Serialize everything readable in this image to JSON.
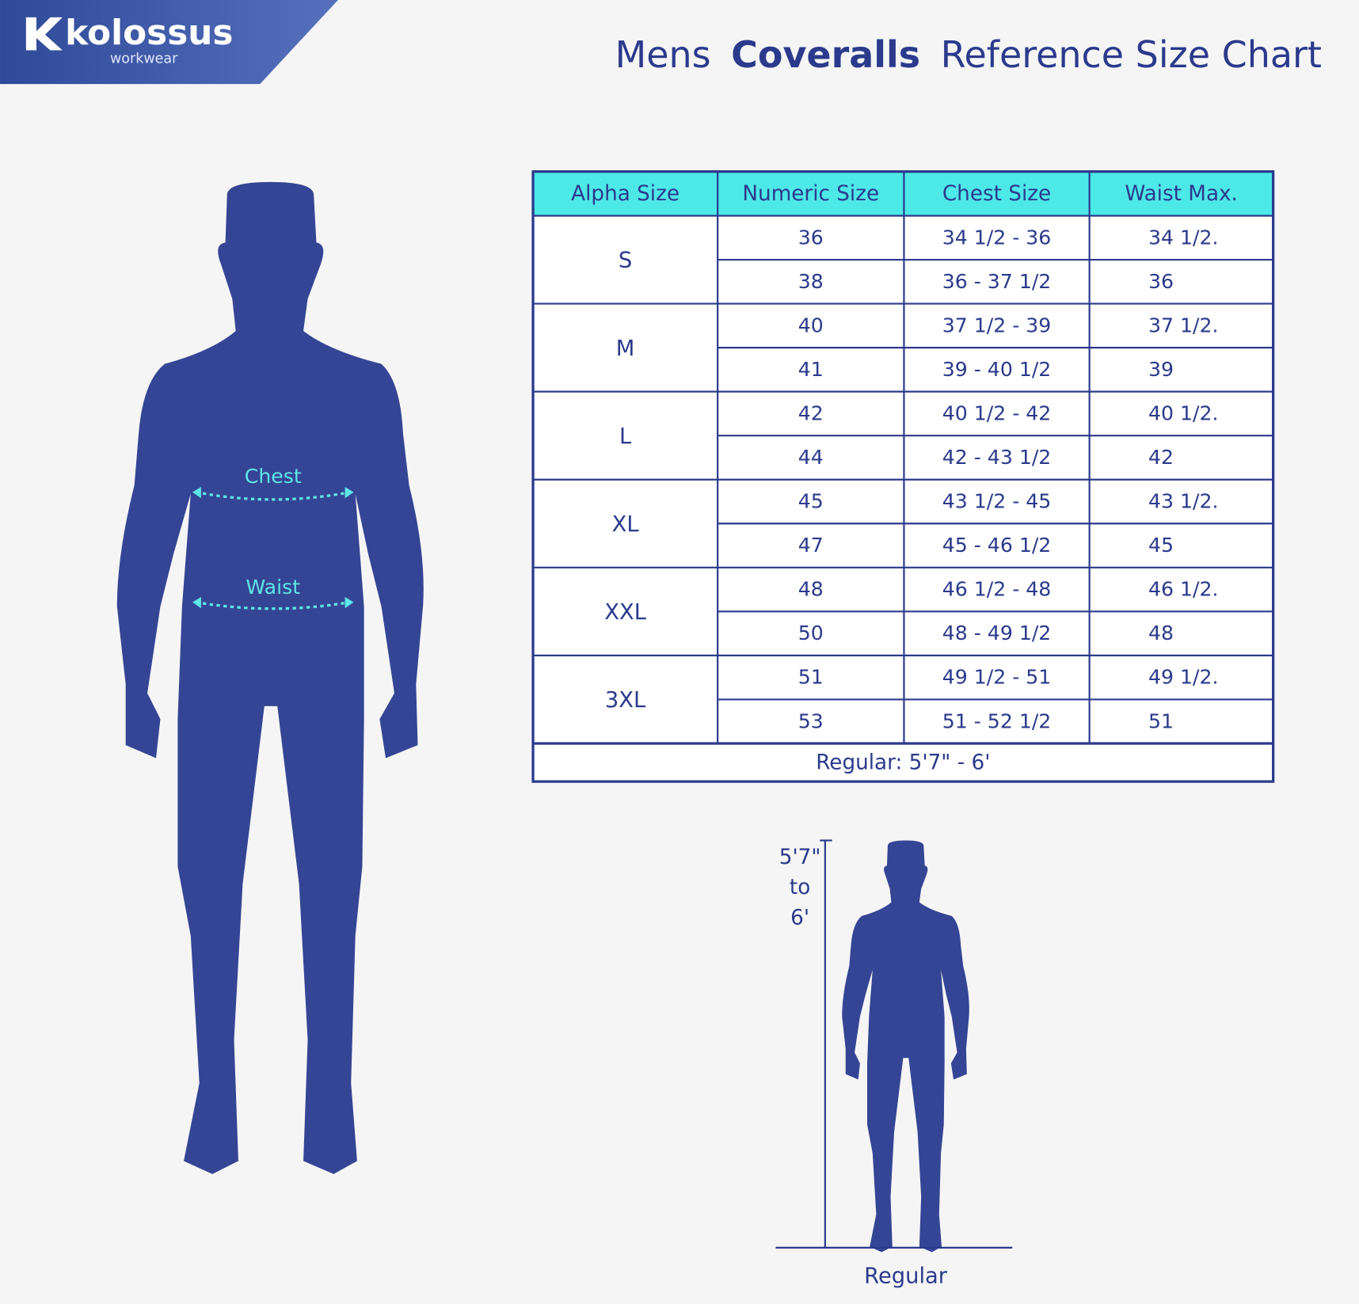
{
  "logo": {
    "brand": "kolossus",
    "sub": "workwear"
  },
  "title": {
    "prefix": "Mens",
    "bold": "Coveralls",
    "suffix": "Reference Size Chart"
  },
  "table": {
    "header": [
      "Alpha Size",
      "Numeric Size",
      "Chest Size",
      "Waist Max."
    ],
    "groups": [
      {
        "alpha": "S",
        "rows": [
          [
            "36",
            "34 1/2 - 36",
            "34 1/2."
          ],
          [
            "38",
            "36 - 37 1/2",
            "36"
          ]
        ]
      },
      {
        "alpha": "M",
        "rows": [
          [
            "40",
            "37 1/2 - 39",
            "37 1/2."
          ],
          [
            "41",
            "39 - 40 1/2",
            "39"
          ]
        ]
      },
      {
        "alpha": "L",
        "rows": [
          [
            "42",
            "40 1/2 - 42",
            "40 1/2."
          ],
          [
            "44",
            "42 - 43 1/2",
            "42"
          ]
        ]
      },
      {
        "alpha": "XL",
        "rows": [
          [
            "45",
            "43 1/2 - 45",
            "43 1/2."
          ],
          [
            "47",
            "45 - 46 1/2",
            "45"
          ]
        ]
      },
      {
        "alpha": "XXL",
        "rows": [
          [
            "48",
            "46 1/2 - 48",
            "46 1/2."
          ],
          [
            "50",
            "48 - 49 1/2",
            "48"
          ]
        ]
      },
      {
        "alpha": "3XL",
        "rows": [
          [
            "51",
            "49 1/2 - 51",
            "49 1/2."
          ],
          [
            "53",
            "51 - 52 1/2",
            "51"
          ]
        ]
      }
    ],
    "footer": "Regular: 5'7\" - 6'"
  },
  "figure_labels": {
    "chest": "Chest",
    "waist": "Waist"
  },
  "height": {
    "range": [
      "5'7\"",
      "to",
      "6'"
    ],
    "label": "Regular"
  }
}
